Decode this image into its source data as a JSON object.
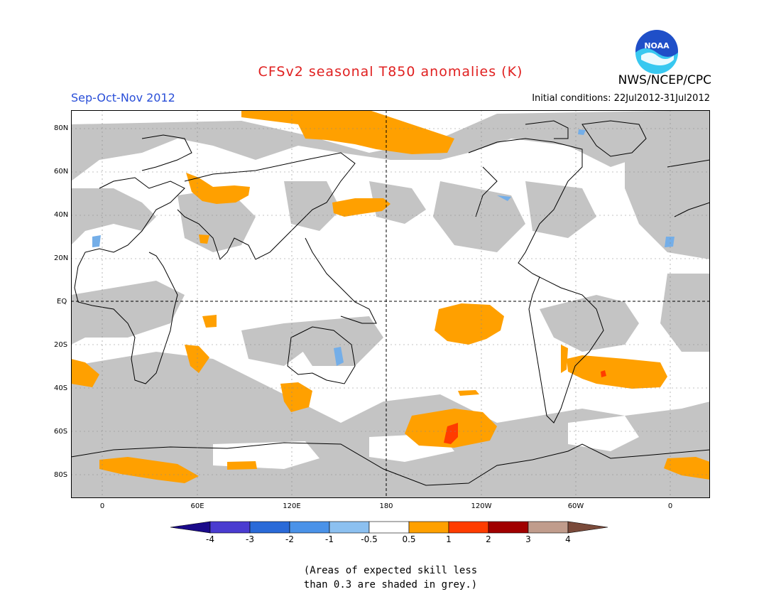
{
  "title": "CFSv2 seasonal T850 anomalies (K)",
  "season": "Sep-Oct-Nov 2012",
  "initial_conditions": "Initial conditions: 22Jul2012-31Jul2012",
  "agency": "NWS/NCEP/CPC",
  "logo_text": "NOAA",
  "lat_labels": [
    "80N",
    "60N",
    "40N",
    "20N",
    "EQ",
    "20S",
    "40S",
    "60S",
    "80S"
  ],
  "lon_labels": [
    "0",
    "60E",
    "120E",
    "180",
    "120W",
    "60W",
    "0"
  ],
  "colorbar": {
    "labels": [
      "-4",
      "-3",
      "-2",
      "-1",
      "-0.5",
      "0.5",
      "1",
      "2",
      "3",
      "4"
    ],
    "colors": [
      "#1a0a8a",
      "#4a3cd0",
      "#2a6ad8",
      "#4a92e8",
      "#8cc0f0",
      "#ffffff",
      "#ffa000",
      "#ff3c00",
      "#a00000",
      "#c09c8c",
      "#7a4a3a"
    ]
  },
  "note_line1": "(Areas of expected skill less",
  "note_line2": "than 0.3 are shaded in grey.)",
  "colors": {
    "skill_grey": "#c4c4c4",
    "anomaly_orange": "#ffa000",
    "anomaly_red": "#ff3c00",
    "anomaly_lightblue": "#74aee8",
    "title_red": "#e02020",
    "season_blue": "#2a4fd8"
  }
}
